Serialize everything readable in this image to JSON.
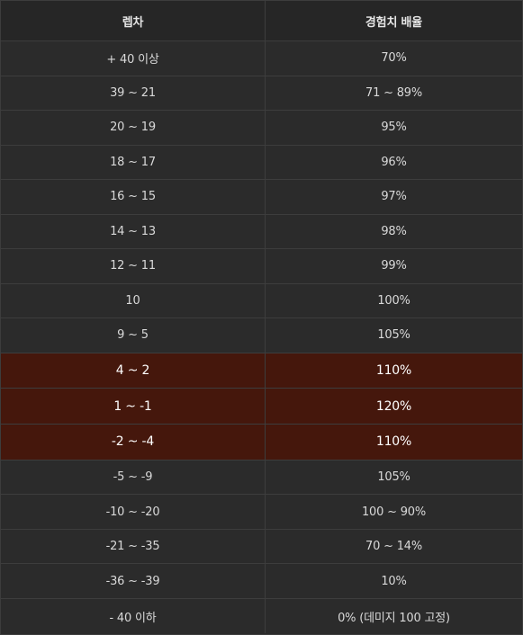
{
  "header": {
    "col1": "렙차",
    "col2": "경험치 배율"
  },
  "rows": [
    {
      "diff": "+ 40 이상",
      "rate": "70%",
      "highlight": false
    },
    {
      "diff": "39 ~ 21",
      "rate": "71 ~ 89%",
      "highlight": false
    },
    {
      "diff": "20 ~ 19",
      "rate": "95%",
      "highlight": false
    },
    {
      "diff": "18 ~ 17",
      "rate": "96%",
      "highlight": false
    },
    {
      "diff": "16 ~ 15",
      "rate": "97%",
      "highlight": false
    },
    {
      "diff": "14 ~ 13",
      "rate": "98%",
      "highlight": false
    },
    {
      "diff": "12 ~ 11",
      "rate": "99%",
      "highlight": false
    },
    {
      "diff": "10",
      "rate": "100%",
      "highlight": false
    },
    {
      "diff": "9 ~ 5",
      "rate": "105%",
      "highlight": false
    },
    {
      "diff": "4 ~ 2",
      "rate": "110%",
      "highlight": true
    },
    {
      "diff": "1 ~ -1",
      "rate": "120%",
      "highlight": true
    },
    {
      "diff": "-2 ~ -4",
      "rate": "110%",
      "highlight": true
    },
    {
      "diff": "-5 ~ -9",
      "rate": "105%",
      "highlight": false
    },
    {
      "diff": "-10 ~ -20",
      "rate": "100 ~ 90%",
      "highlight": false
    },
    {
      "diff": "-21 ~ -35",
      "rate": "70 ~ 14%",
      "highlight": false
    },
    {
      "diff": "-36 ~ -39",
      "rate": "10%",
      "highlight": false
    },
    {
      "diff": "- 40 이하",
      "rate": "0% (데미지 100 고정)",
      "highlight": false
    }
  ],
  "colors": {
    "background": "#2b2b2b",
    "highlight": "#45170c",
    "border": "#3d3d3d",
    "text": "#d9d9d9"
  }
}
